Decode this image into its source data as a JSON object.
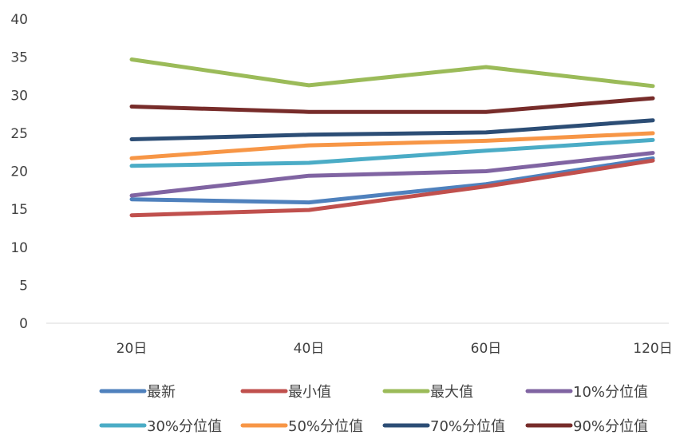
{
  "chart_data": {
    "type": "line",
    "title": "",
    "xlabel": "",
    "ylabel": "",
    "categories": [
      "20日",
      "40日",
      "60日",
      "120日"
    ],
    "ylim": [
      0,
      40
    ],
    "yticks": [
      "0",
      "5",
      "10",
      "15",
      "20",
      "25",
      "30",
      "35",
      "40"
    ],
    "grid": false,
    "legend_position": "bottom",
    "series": [
      {
        "name": "最新",
        "color": "#4F81BD",
        "values": [
          16.3,
          15.9,
          18.3,
          21.7
        ]
      },
      {
        "name": "最小值",
        "color": "#C0504D",
        "values": [
          14.2,
          14.9,
          18.0,
          21.4
        ]
      },
      {
        "name": "最大值",
        "color": "#9BBB59",
        "values": [
          34.7,
          31.3,
          33.7,
          31.2
        ]
      },
      {
        "name": "10%分位值",
        "color": "#8064A2",
        "values": [
          16.8,
          19.4,
          20.0,
          22.4
        ]
      },
      {
        "name": "30%分位值",
        "color": "#4BACC6",
        "values": [
          20.7,
          21.1,
          22.7,
          24.1
        ]
      },
      {
        "name": "50%分位值",
        "color": "#F79646",
        "values": [
          21.7,
          23.4,
          24.0,
          25.0
        ]
      },
      {
        "name": "70%分位值",
        "color": "#2C4D75",
        "values": [
          24.2,
          24.8,
          25.1,
          26.7
        ]
      },
      {
        "name": "90%分位值",
        "color": "#772C2A",
        "values": [
          28.5,
          27.8,
          27.8,
          29.6
        ]
      }
    ]
  }
}
